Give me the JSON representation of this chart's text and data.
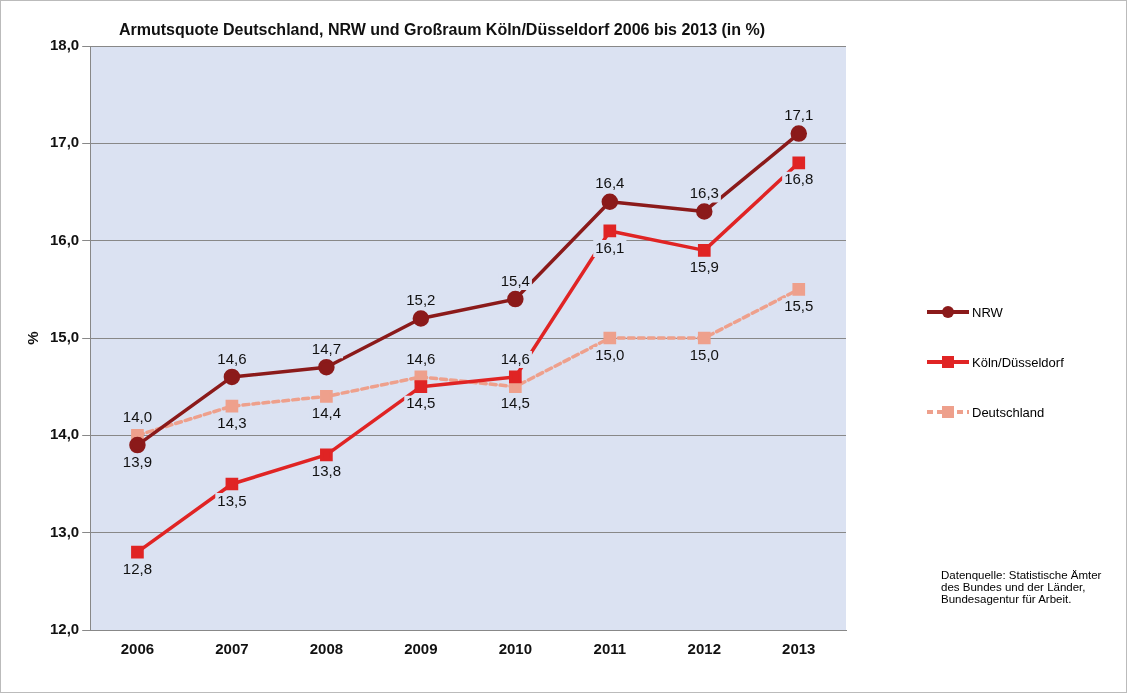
{
  "chart_data": {
    "type": "line",
    "title": "Armutsquote Deutschland, NRW und Großraum Köln/Düsseldorf 2006 bis 2013 (in %)",
    "ylabel": "%",
    "categories": [
      "2006",
      "2007",
      "2008",
      "2009",
      "2010",
      "2011",
      "2012",
      "2013"
    ],
    "series": [
      {
        "name": "NRW",
        "color": "#8b1a1a",
        "marker": "circle",
        "line_style": "solid",
        "values": [
          13.9,
          14.6,
          14.7,
          15.2,
          15.4,
          16.4,
          16.3,
          17.1
        ],
        "value_labels": [
          "13,9",
          "14,6",
          "14,7",
          "15,2",
          "15,4",
          "16,4",
          "16,3",
          "17,1"
        ]
      },
      {
        "name": "Köln/Düsseldorf",
        "color": "#e02424",
        "marker": "square",
        "line_style": "solid",
        "values": [
          12.8,
          13.5,
          13.8,
          14.5,
          14.6,
          16.1,
          15.9,
          16.8
        ],
        "value_labels": [
          "12,8",
          "13,5",
          "13,8",
          "14,5",
          "14,6",
          "16,1",
          "15,9",
          "16,8"
        ]
      },
      {
        "name": "Deutschland",
        "color": "#eea08c",
        "marker": "square",
        "line_style": "dashed",
        "values": [
          14.0,
          14.3,
          14.4,
          14.6,
          14.5,
          15.0,
          15.0,
          15.5
        ],
        "value_labels": [
          "14,0",
          "14,3",
          "14,4",
          "14,6",
          "14,5",
          "15,0",
          "15,0",
          "15,5"
        ]
      }
    ],
    "ylim": [
      12,
      18
    ],
    "yticks": [
      {
        "value": 12,
        "label": "12,0"
      },
      {
        "value": 13,
        "label": "13,0"
      },
      {
        "value": 14,
        "label": "14,0"
      },
      {
        "value": 15,
        "label": "15,0"
      },
      {
        "value": 16,
        "label": "16,0"
      },
      {
        "value": 17,
        "label": "17,0"
      },
      {
        "value": 18,
        "label": "18,0"
      }
    ],
    "grid": "y",
    "legend": "right",
    "annotations": [
      "Datenquelle: Statistische Ämter des Bundes und der Länder, Bundesagentur für Arbeit."
    ]
  }
}
